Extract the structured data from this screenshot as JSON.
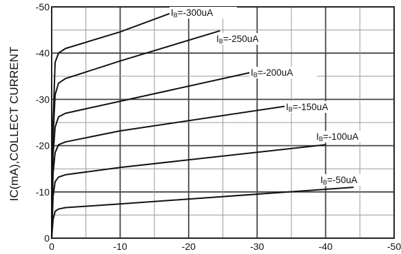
{
  "chart_data": {
    "type": "line",
    "title": "",
    "xlabel": "",
    "ylabel": "IC(mA),COLLECT CURRENT",
    "x_ticks": [
      "0",
      "-10",
      "-20",
      "-30",
      "-40",
      "-50"
    ],
    "y_ticks": [
      "0",
      "-10",
      "-20",
      "-30",
      "-40",
      "-50"
    ],
    "xlim": [
      0,
      -50
    ],
    "ylim": [
      0,
      -50
    ],
    "grid": true,
    "series": [
      {
        "name": "IB=-300uA",
        "label_main": "I",
        "label_sub": "B",
        "label_rest": "=-300uA",
        "points": [
          [
            0,
            0
          ],
          [
            -0.2,
            -25
          ],
          [
            -0.5,
            -38
          ],
          [
            -1,
            -40
          ],
          [
            -2,
            -41
          ],
          [
            -10,
            -44.6
          ],
          [
            -19.5,
            -49.8
          ]
        ]
      },
      {
        "name": "IB=-250uA",
        "label_main": "I",
        "label_sub": "B",
        "label_rest": "=-250uA",
        "points": [
          [
            0,
            0
          ],
          [
            -0.2,
            -22
          ],
          [
            -0.5,
            -31
          ],
          [
            -1,
            -33.5
          ],
          [
            -2,
            -34.5
          ],
          [
            -10,
            -38.3
          ],
          [
            -24.5,
            -44.8
          ]
        ]
      },
      {
        "name": "IB=-200uA",
        "label_main": "I",
        "label_sub": "B",
        "label_rest": "=-200uA",
        "points": [
          [
            0,
            0
          ],
          [
            -0.2,
            -18
          ],
          [
            -0.5,
            -24
          ],
          [
            -1,
            -26.2
          ],
          [
            -2,
            -27
          ],
          [
            -10,
            -29.6
          ],
          [
            -29,
            -35.8
          ]
        ]
      },
      {
        "name": "IB=-150uA",
        "label_main": "I",
        "label_sub": "B",
        "label_rest": "=-150uA",
        "points": [
          [
            0,
            0
          ],
          [
            -0.2,
            -14
          ],
          [
            -0.5,
            -18.5
          ],
          [
            -1,
            -20.2
          ],
          [
            -2,
            -20.8
          ],
          [
            -10,
            -23.2
          ],
          [
            -34,
            -28.5
          ]
        ]
      },
      {
        "name": "IB=-100uA",
        "label_main": "I",
        "label_sub": "B",
        "label_rest": "=-100uA",
        "points": [
          [
            0,
            0
          ],
          [
            -0.2,
            -9
          ],
          [
            -0.5,
            -12.2
          ],
          [
            -1,
            -13.2
          ],
          [
            -2,
            -13.7
          ],
          [
            -10,
            -15.3
          ],
          [
            -40,
            -20.2
          ]
        ]
      },
      {
        "name": "IB=-50uA",
        "label_main": "I",
        "label_sub": "B",
        "label_rest": "=-50uA",
        "points": [
          [
            0,
            0
          ],
          [
            -0.2,
            -4
          ],
          [
            -0.5,
            -5.8
          ],
          [
            -1,
            -6.3
          ],
          [
            -2,
            -6.6
          ],
          [
            -10,
            -7.4
          ],
          [
            -44,
            -11
          ]
        ]
      }
    ]
  }
}
